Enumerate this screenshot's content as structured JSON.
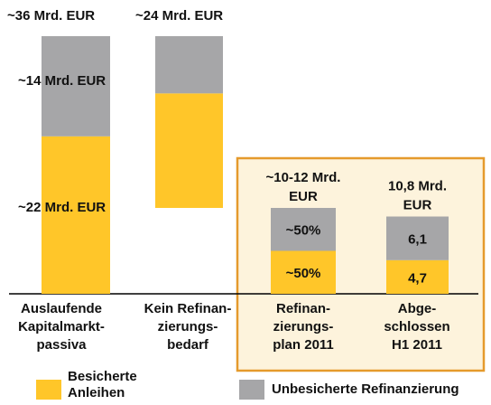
{
  "chart_data": {
    "type": "stacked_bar",
    "categories": [
      [
        "Auslaufende",
        "Kapitalmarkt-",
        "passiva"
      ],
      [
        "Kein Refinan-",
        "zierungs-",
        "bedarf"
      ],
      [
        "Refinan-",
        "zierungs-",
        "plan 2011"
      ],
      [
        "Abge-",
        "schlossen",
        "H1 2011"
      ]
    ],
    "base": [
      0,
      12,
      0,
      0
    ],
    "series": [
      {
        "name": "Besicherte Anleihen",
        "color": "#ffc629",
        "values": [
          22,
          16,
          6,
          4.7
        ],
        "value_labels": [
          "~22 Mrd. EUR",
          null,
          null,
          "4,7"
        ]
      },
      {
        "name": "Unbesicherte Refinanzierung",
        "color": "#a6a6a8",
        "values": [
          14,
          8,
          6,
          6.1
        ],
        "value_labels": [
          "~14 Mrd. EUR",
          null,
          null,
          "6,1"
        ]
      }
    ],
    "share_labels": [
      null,
      null,
      [
        "~50%",
        "~50%"
      ],
      null
    ],
    "total_labels": [
      [
        "~36 Mrd. EUR"
      ],
      [
        "~24 Mrd. EUR"
      ],
      [
        "~10-12 Mrd.",
        "EUR"
      ],
      [
        "10,8 Mrd.",
        "EUR"
      ]
    ],
    "ylim": [
      0,
      36
    ]
  }
}
